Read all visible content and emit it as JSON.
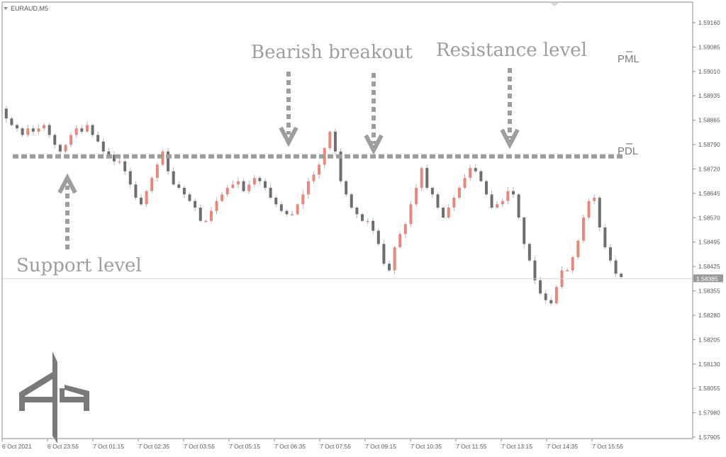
{
  "window": {
    "title": "EURAUD,M5"
  },
  "colors": {
    "bull": "#e8877a",
    "bear": "#6e6e6e",
    "wick": "#b5b5b5",
    "annotation": "#9e9e9e",
    "frame": "#8c8c8c",
    "axis_text": "#5a5a5a",
    "price_tag_bg": "#9a9a9a",
    "logo": "#7a7a7a"
  },
  "annotations": {
    "bearish_breakout": "Bearish breakout",
    "resistance": "Resistance level",
    "support": "Support level",
    "pml": "PML",
    "pdl": "PDL"
  },
  "logo": {
    "icon": "brand-monogram-icon"
  },
  "chart_data": {
    "type": "candlestick",
    "symbol": "EURAUD",
    "timeframe": "M5",
    "ylim": [
      1.57905,
      1.5916
    ],
    "y_ticks": [
      "1.59160",
      "1.59085",
      "1.59010",
      "1.58935",
      "1.58865",
      "1.58790",
      "1.58720",
      "1.58645",
      "1.58570",
      "1.58495",
      "1.58425",
      "1.58355",
      "1.58280",
      "1.58205",
      "1.58130",
      "1.58055",
      "1.57980",
      "1.57905"
    ],
    "x_ticks": [
      "6 Oct 2021",
      "6 Oct 23:55",
      "7 Oct 01:15",
      "7 Oct 02:35",
      "7 Oct 03:55",
      "7 Oct 05:15",
      "7 Oct 06:35",
      "7 Oct 07:55",
      "7 Oct 09:15",
      "7 Oct 10:35",
      "7 Oct 11:55",
      "7 Oct 13:15",
      "7 Oct 14:35",
      "7 Oct 15:55"
    ],
    "current_price": "1.58385",
    "levels": [
      {
        "name": "PDL",
        "value": 1.58755
      },
      {
        "name": "PML",
        "value": 1.59045
      }
    ],
    "path": [
      1.589,
      1.5887,
      1.5885,
      1.5884,
      1.5882,
      1.5884,
      1.5883,
      1.5884,
      1.5885,
      1.5882,
      1.5879,
      1.5877,
      1.5879,
      1.5882,
      1.5884,
      1.5883,
      1.5885,
      1.5882,
      1.588,
      1.5877,
      1.5876,
      1.5874,
      1.5874,
      1.5871,
      1.5867,
      1.5863,
      1.5861,
      1.5865,
      1.5869,
      1.5873,
      1.5877,
      1.5871,
      1.5867,
      1.5866,
      1.5864,
      1.5862,
      1.586,
      1.5856,
      1.5856,
      1.5859,
      1.5862,
      1.5864,
      1.5866,
      1.5867,
      1.5868,
      1.5865,
      1.5867,
      1.5869,
      1.5868,
      1.5866,
      1.5863,
      1.5861,
      1.5859,
      1.5858,
      1.5858,
      1.5861,
      1.5864,
      1.5868,
      1.587,
      1.5873,
      1.5878,
      1.5883,
      1.5877,
      1.5868,
      1.5864,
      1.586,
      1.5858,
      1.5856,
      1.5856,
      1.5853,
      1.5849,
      1.5843,
      1.5841,
      1.5848,
      1.5852,
      1.5855,
      1.5861,
      1.5866,
      1.5872,
      1.5866,
      1.5864,
      1.586,
      1.5857,
      1.586,
      1.5863,
      1.5866,
      1.5869,
      1.5872,
      1.5871,
      1.5868,
      1.5864,
      1.586,
      1.5861,
      1.5862,
      1.5865,
      1.5864,
      1.5857,
      1.5849,
      1.5844,
      1.5838,
      1.5834,
      1.5832,
      1.5831,
      1.5836,
      1.5841,
      1.5841,
      1.5845,
      1.585,
      1.5857,
      1.5862,
      1.5863,
      1.5854,
      1.5848,
      1.5844,
      1.584,
      1.5839
    ]
  }
}
